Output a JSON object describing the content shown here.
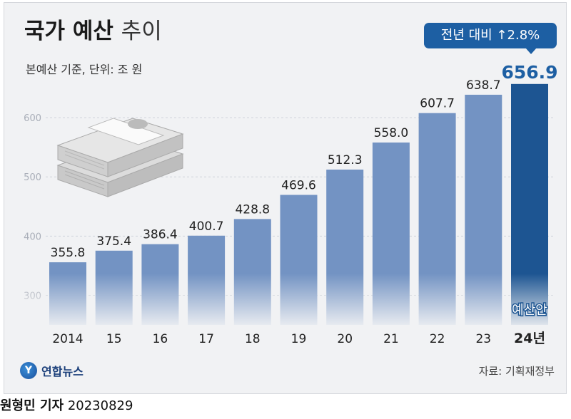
{
  "header": {
    "title_bold": "국가 예산",
    "title_light": "추이",
    "subtitle": "본예산 기준, 단위: 조 원",
    "badge": "전년 대비 ↑2.8%"
  },
  "chart_data": {
    "type": "bar",
    "categories": [
      "2014",
      "15",
      "16",
      "17",
      "18",
      "19",
      "20",
      "21",
      "22",
      "23",
      "24년"
    ],
    "values": [
      355.8,
      375.4,
      386.4,
      400.7,
      428.8,
      469.6,
      512.3,
      558.0,
      607.7,
      638.7,
      656.9
    ],
    "value_labels": [
      "355.8",
      "375.4",
      "386.4",
      "400.7",
      "428.8",
      "469.6",
      "512.3",
      "558.0",
      "607.7",
      "638.7",
      "656.9"
    ],
    "ylim": [
      250,
      700
    ],
    "yticks": [
      300,
      400,
      500,
      600
    ],
    "grid": true,
    "highlight_index": 10,
    "highlight_note": "예산안",
    "colors": {
      "bar": "#7393c3",
      "highlight": "#1d5592",
      "highlight_label": "#1d5fa3",
      "grid": "#cfd3da",
      "tick": "#a9aeb8"
    }
  },
  "footer": {
    "logo_mark": "Y",
    "logo_text": "연합뉴스",
    "source": "자료: 기획재정부",
    "reporter_name": "원형민 기자",
    "reporter_date": "20230829"
  }
}
